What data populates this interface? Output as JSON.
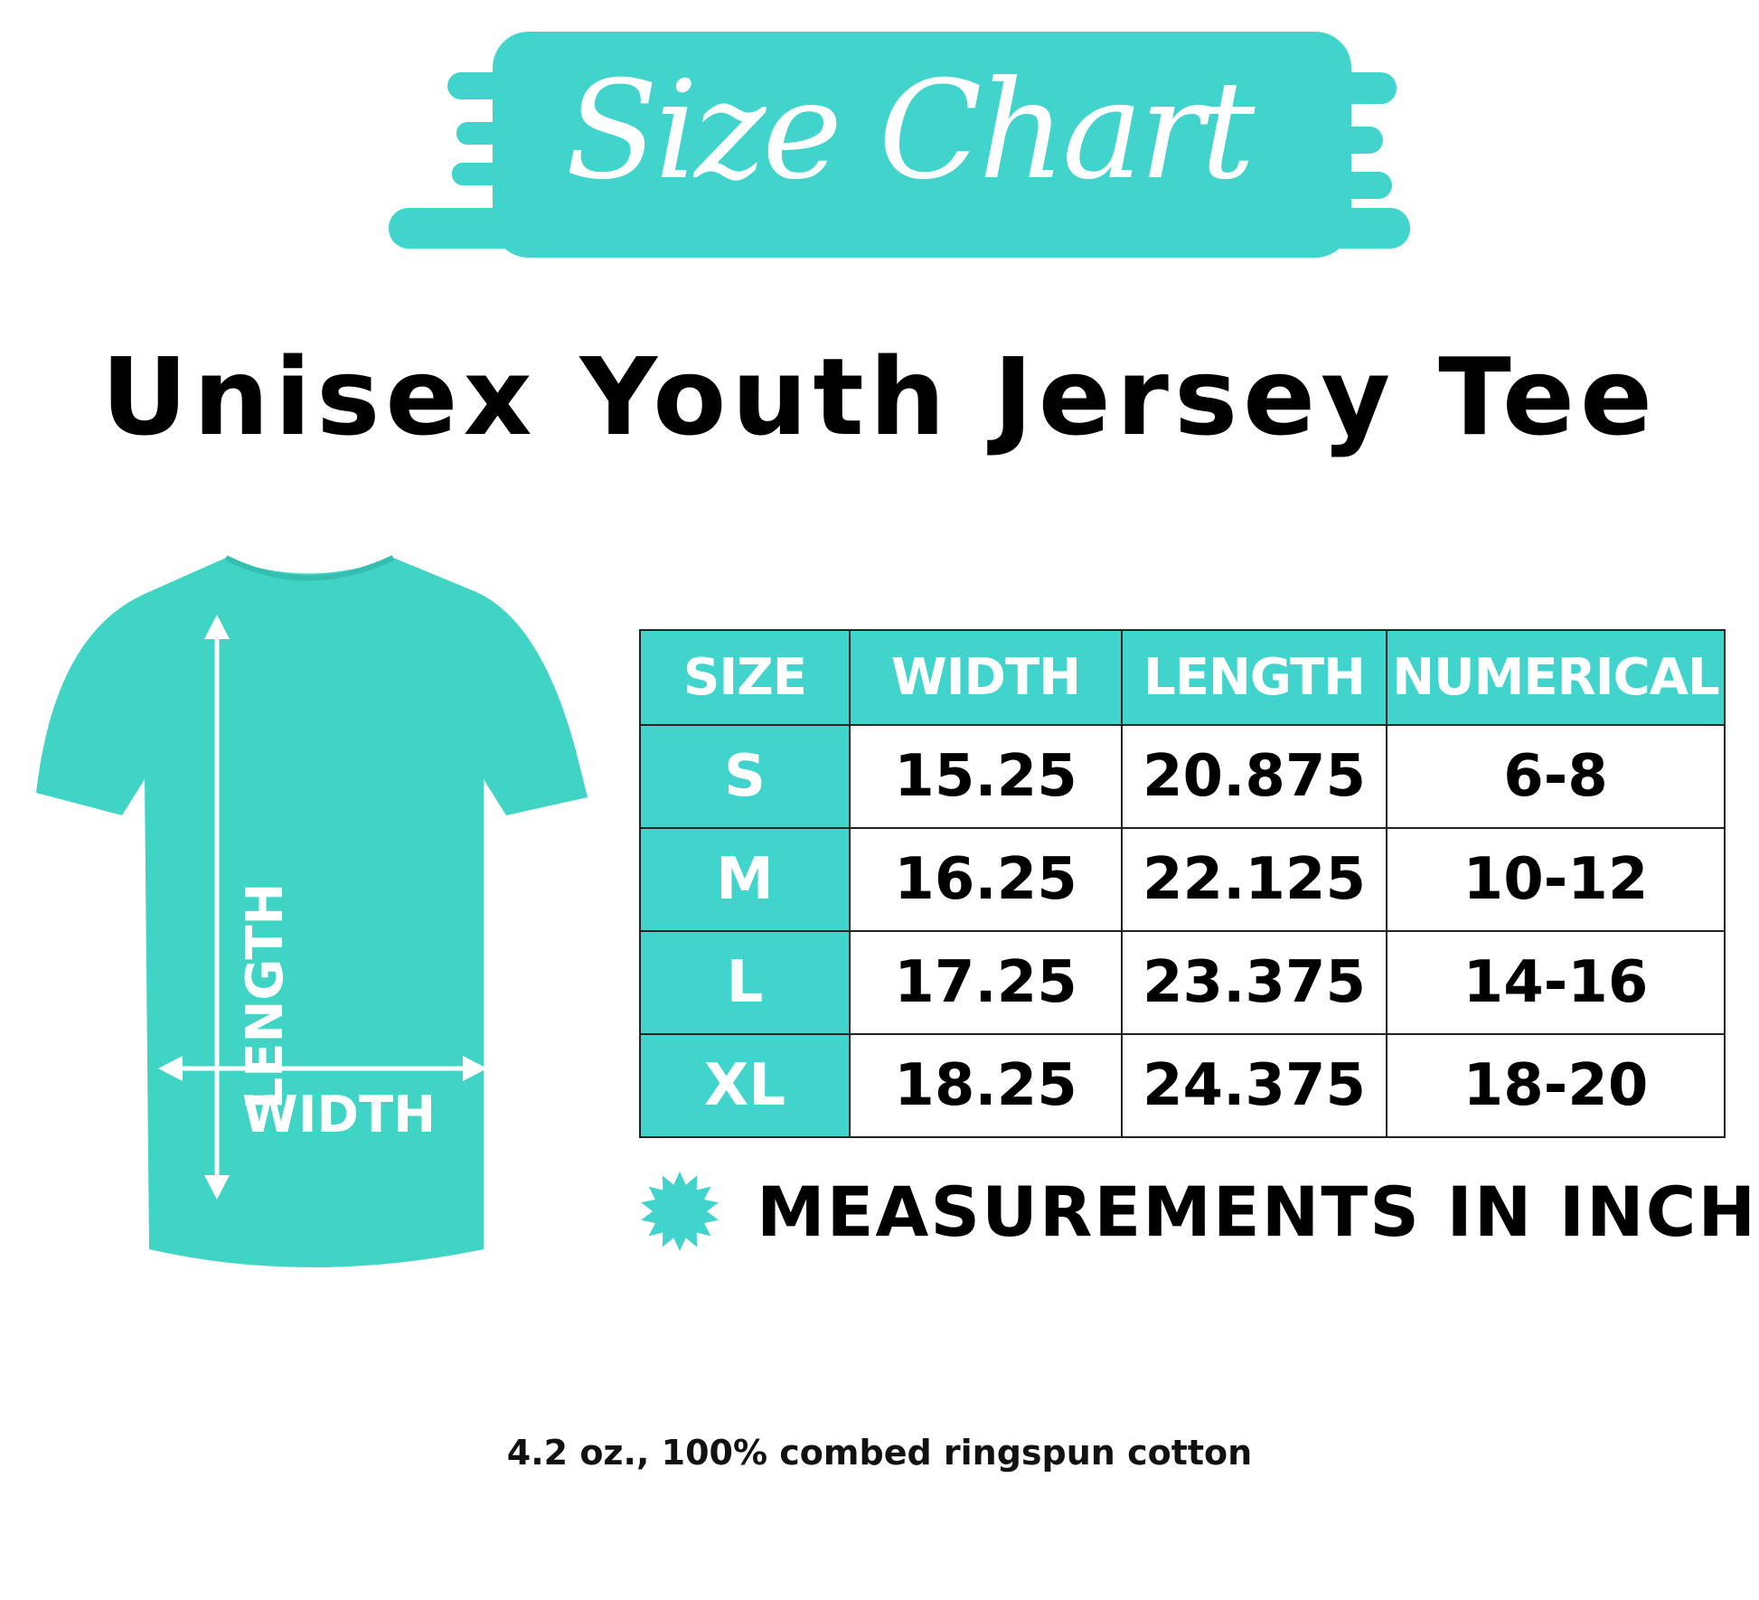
{
  "banner": {
    "title": "Size Chart"
  },
  "title": "Unisex Youth Jersey Tee",
  "shirt": {
    "length_label": "LENGTH",
    "width_label": "WIDTH",
    "color": "#3fd4c4"
  },
  "table": {
    "headers": [
      "SIZE",
      "WIDTH",
      "LENGTH",
      "NUMERICAL"
    ],
    "rows": [
      [
        "S",
        "15.25",
        "20.875",
        "6-8"
      ],
      [
        "M",
        "16.25",
        "22.125",
        "10-12"
      ],
      [
        "L",
        "17.25",
        "23.375",
        "14-16"
      ],
      [
        "XL",
        "18.25",
        "24.375",
        "18-20"
      ]
    ]
  },
  "note": "MEASUREMENTS IN INCH",
  "footer": "4.2 oz., 100% combed ringspun cotton",
  "colors": {
    "accent": "#40d4cc"
  }
}
